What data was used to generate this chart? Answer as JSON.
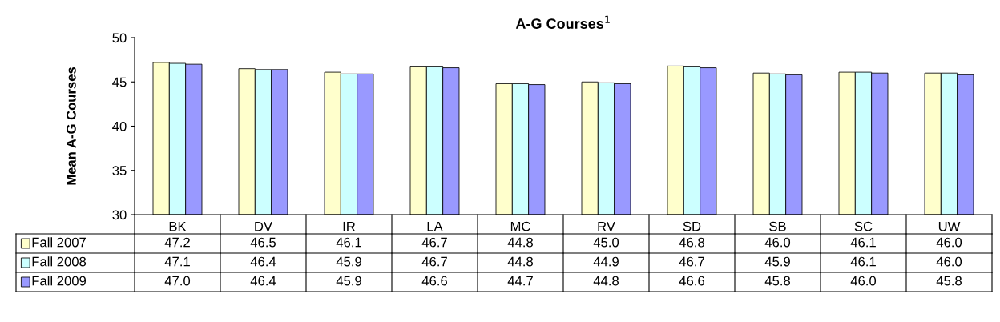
{
  "chart_data": {
    "type": "bar",
    "title": "A-G Courses$^{1}$",
    "ylabel": "Mean A-G Courses",
    "categories": [
      "BK",
      "DV",
      "IR",
      "LA",
      "MC",
      "RV",
      "SD",
      "SB",
      "SC",
      "UW"
    ],
    "series": [
      {
        "name": "Fall 2007",
        "color": "#ffffcc",
        "values": [
          47.2,
          46.5,
          46.1,
          46.7,
          44.8,
          45.0,
          46.8,
          46.0,
          46.1,
          46.0
        ],
        "value_labels": [
          "47.2",
          "46.5",
          "46.1",
          "46.7",
          "44.8",
          "45.0",
          "46.8",
          "46.0",
          "46.1",
          "46.0"
        ]
      },
      {
        "name": "Fall 2008",
        "color": "#ccffff",
        "values": [
          47.1,
          46.4,
          45.9,
          46.7,
          44.8,
          44.9,
          46.7,
          45.9,
          46.1,
          46.0
        ],
        "value_labels": [
          "47.1",
          "46.4",
          "45.9",
          "46.7",
          "44.8",
          "44.9",
          "46.7",
          "45.9",
          "46.1",
          "46.0"
        ]
      },
      {
        "name": "Fall 2009",
        "color": "#9999ff",
        "values": [
          47.0,
          46.4,
          45.9,
          46.6,
          44.7,
          44.8,
          46.6,
          45.8,
          46.0,
          45.8
        ],
        "value_labels": [
          "47.0",
          "46.4",
          "45.9",
          "46.6",
          "44.7",
          "44.8",
          "46.6",
          "45.8",
          "46.0",
          "45.8"
        ]
      }
    ],
    "ylim": [
      30,
      50
    ],
    "yticks": [
      30,
      35,
      40,
      45,
      50
    ],
    "grid": false,
    "legend": "bottom left"
  }
}
